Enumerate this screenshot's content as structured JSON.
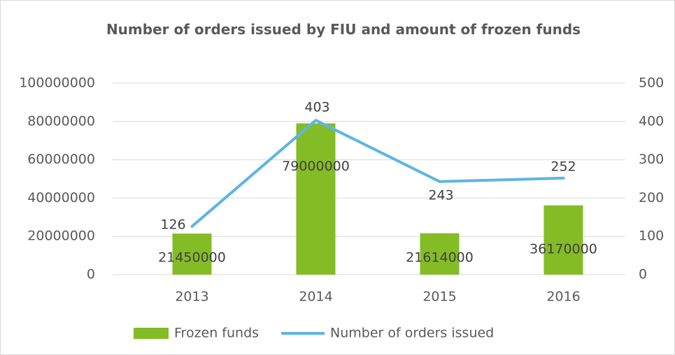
{
  "chart_data": {
    "type": "bar-line",
    "title": "Number of orders issued by FIU and amount of frozen funds",
    "categories": [
      "2013",
      "2014",
      "2015",
      "2016"
    ],
    "series": [
      {
        "name": "Frozen funds",
        "type": "bar",
        "color": "#84bc26",
        "values": [
          21450000,
          79000000,
          21614000,
          36170000
        ]
      },
      {
        "name": "Number of orders issued",
        "type": "line",
        "axis": "y2",
        "color": "#5db4e5",
        "values": [
          126,
          403,
          243,
          252
        ]
      }
    ],
    "ylim": [
      0,
      100000000
    ],
    "yticks": [
      0,
      20000000,
      40000000,
      60000000,
      80000000,
      100000000
    ],
    "y2lim": [
      0,
      500
    ],
    "y2ticks": [
      0,
      100,
      200,
      300,
      400,
      500
    ],
    "grid": true,
    "legend": "bottom"
  }
}
